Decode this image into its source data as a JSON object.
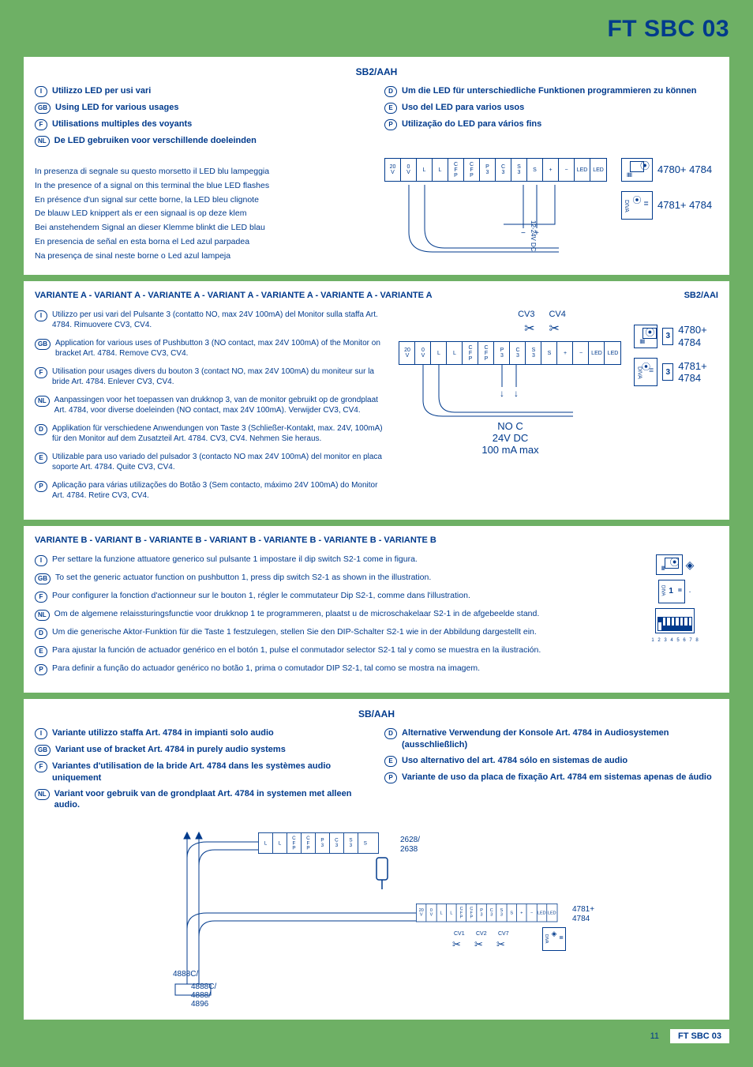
{
  "page_title": "FT SBC 03",
  "footer": {
    "page": "11",
    "code": "FT SBC 03"
  },
  "colors": {
    "brand": "#003a8c",
    "bg": "#6eb065",
    "panel": "#ffffff"
  },
  "section1": {
    "header": "SB2/AAH",
    "titles": {
      "I": "Utilizzo LED per usi vari",
      "GB": "Using LED for various usages",
      "F": "Utilisations multiples des voyants",
      "NL": "De LED gebruiken voor verschillende doeleinden",
      "D": "Um die LED für unterschiedliche Funktionen programmieren zu können",
      "E": "Uso del LED para varios usos",
      "P": "Utilização do LED para vários fins"
    },
    "descriptions": [
      "In presenza di segnale su questo morsetto il LED blu lampeggia",
      "In the presence of a signal on this terminal the blue LED flashes",
      "En présence d'un signal sur cette borne, la LED bleu clignote",
      "De blauw LED knippert als er een signaal is op deze klem",
      "Bei anstehendem Signal an dieser Klemme blinkt die LED blau",
      "En presencia de señal en esta borna el Led azul parpadea",
      "Na presença de sinal neste borne o Led azul lampeja"
    ],
    "diagram": {
      "terminals": [
        "20 V",
        "0 V",
        "L",
        "L",
        "C F P",
        "C F P",
        "P 3",
        "C 3",
        "S 3",
        "S",
        "+",
        "−",
        "LED",
        "LED"
      ],
      "mod_top": "4780+ 4784",
      "mod_bot": "4781+ 4784",
      "bracket_vlabel": "DIVA",
      "bus_label": "12-24V DC"
    }
  },
  "variantA": {
    "header": "VARIANTE A - VARIANT A - VARIANTE A - VARIANT A - VARIANTE A - VARIANTE A - VARIANTE A",
    "code": "SB2/AAI",
    "items": {
      "I": "Utilizzo per usi vari del Pulsante 3 (contatto NO, max 24V 100mA) del Monitor sulla staffa Art. 4784. Rimuovere CV3, CV4.",
      "GB": "Application for various uses of Pushbutton 3 (NO contact, max 24V 100mA) of the Monitor on bracket Art. 4784. Remove CV3, CV4.",
      "F": "Utilisation pour usages divers du bouton 3 (contact NO, max 24V 100mA) du moniteur sur la bride Art. 4784. Enlever CV3, CV4.",
      "NL": "Aanpassingen voor het toepassen van drukknop 3, van de monitor gebruikt op de grondplaat Art. 4784, voor diverse doeleinden (NO contact, max 24V 100mA). Verwijder CV3, CV4.",
      "D": "Applikation für verschiedene Anwendungen von Taste 3 (Schließer-Kontakt, max. 24V, 100mA) für den Monitor auf dem Zusatzteil Art. 4784. CV3, CV4. Nehmen Sie heraus.",
      "E": "Utilizable para uso variado del pulsador 3 (contacto NO max 24V 100mA) del monitor en placa soporte Art. 4784. Quite CV3, CV4.",
      "P": "Aplicação para várias utilizações do Botão 3 (Sem contacto, máximo 24V 100mA) do Monitor Art. 4784. Retire CV3, CV4."
    },
    "bold_art": "Art. 4784",
    "diagram": {
      "cv3": "CV3",
      "cv4": "CV4",
      "terminals": [
        "20 V",
        "0 V",
        "L",
        "L",
        "C F P",
        "C F P",
        "P 3",
        "C 3",
        "S 3",
        "S",
        "+",
        "−",
        "LED",
        "LED"
      ],
      "noc": "NO C",
      "v": "24V DC",
      "ma": "100 mA max",
      "mod_top": "4780+ 4784",
      "mod_bot": "4781+ 4784",
      "btn": "3",
      "bracket_vlabel": "DIVA"
    }
  },
  "variantB": {
    "header": "VARIANTE B - VARIANT B - VARIANTE B - VARIANT B - VARIANTE B - VARIANTE B - VARIANTE B",
    "items": {
      "I": "Per settare la funzione attuatore generico sul pulsante 1 impostare il dip switch S2-1 come in figura.",
      "GB": "To set the generic actuator function on pushbutton 1, press dip switch S2-1 as shown in the illustration.",
      "F": "Pour configurer la fonction d'actionneur sur le bouton  1, régler le commutateur Dip  S2-1, comme dans l'illustration.",
      "NL": "Om de algemene relaissturingsfunctie voor drukknop 1 te programmeren, plaatst u de microschakelaar S2-1 in de afgebeelde stand.",
      "D": "Um die generische Aktor-Funktion für die Taste 1 festzulegen, stellen Sie den DIP-Schalter S2-1 wie in der Abbildung dargestellt ein.",
      "E": "Para ajustar la función de actuador genérico en el botón 1, pulse el conmutador selector S2-1 tal y como se muestra en la ilustración.",
      "P": "Para definir a função do actuador genérico no botão 1, prima o comutador DIP S2-1, tal como se mostra na imagem."
    },
    "diagram": {
      "btn": "1",
      "bracket_vlabel": "DIVA",
      "dips": [
        "up",
        "down",
        "down",
        "down",
        "down",
        "down",
        "down",
        "down"
      ],
      "dip_labels": [
        "1",
        "2",
        "3",
        "4",
        "5",
        "6",
        "7",
        "8"
      ]
    }
  },
  "section4": {
    "header": "SB/AAH",
    "titles": {
      "I": "Variante utilizzo staffa Art. 4784 in impianti solo audio",
      "GB": "Variant use of bracket Art. 4784 in purely audio systems",
      "F": "Variantes d'utilisation de la bride Art.  4784 dans les systèmes audio uniquement",
      "NL": "Variant voor gebruik van de grondplaat Art. 4784 in systemen met alleen audio.",
      "D": "Alternative Verwendung der Konsole Art. 4784 in Audiosystemen (ausschließlich)",
      "E": "Uso alternativo del art. 4784 sólo en sistemas de audio",
      "P": "Variante de uso da placa de fixação Art. 4784 em sistemas apenas de áudio"
    },
    "diagram": {
      "top_terminals": [
        "L",
        "L",
        "C F P",
        "C F P",
        "P 3",
        "C 3",
        "S 3",
        "S"
      ],
      "top_arts": "2628/ 2638",
      "right_terminals": [
        "20 V",
        "0 V",
        "L",
        "L",
        "C F P",
        "C F P",
        "P 3",
        "C 3",
        "S 3",
        "S",
        "+",
        "−",
        "LED",
        "LED"
      ],
      "right_art": "4781+ 4784",
      "cv": [
        "CV1",
        "CV2",
        "CV7"
      ],
      "bracket_vlabel": "DIVA",
      "bottom_art": "4888C/ 4888/ 4896"
    }
  }
}
